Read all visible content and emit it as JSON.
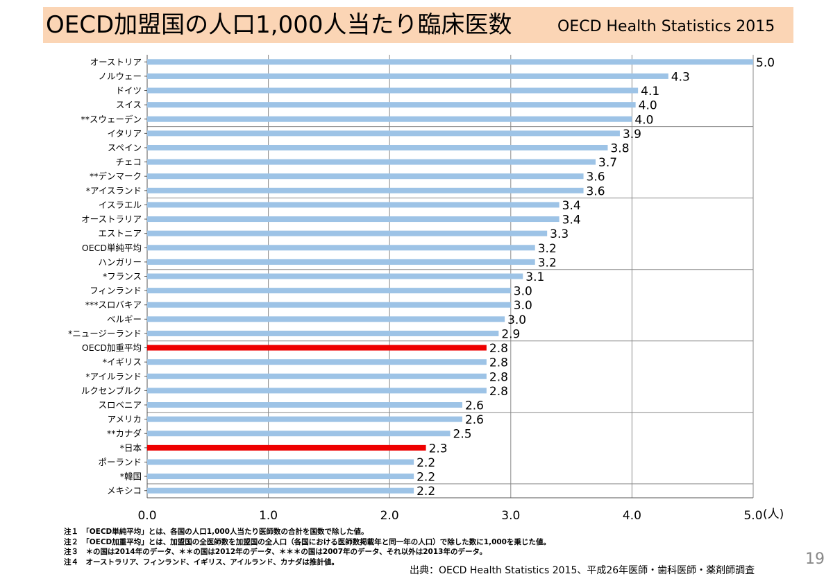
{
  "title": "OECD加盟国の人口1,000人当たり臨床医数",
  "subtitle": "OECD Health Statistics 2015",
  "chart_data": {
    "type": "bar",
    "orientation": "horizontal",
    "categories": [
      "オーストリア",
      "ノルウェー",
      "ドイツ",
      "スイス",
      "**スウェーデン",
      "イタリア",
      "スペイン",
      "チェコ",
      "**デンマーク",
      "*アイスランド",
      "イスラエル",
      "オーストラリア",
      "エストニア",
      "OECD単純平均",
      "ハンガリー",
      "*フランス",
      "フィンランド",
      "***スロバキア",
      "ベルギー",
      "*ニュージーランド",
      "OECD加重平均",
      "*イギリス",
      "*アイルランド",
      "ルクセンブルク",
      "スロベニア",
      "アメリカ",
      "**カナダ",
      "*日本",
      "ポーランド",
      "*韓国",
      "メキシコ"
    ],
    "values": [
      5.0,
      4.3,
      4.05,
      4.03,
      4.0,
      3.9,
      3.8,
      3.7,
      3.6,
      3.6,
      3.4,
      3.4,
      3.3,
      3.2,
      3.2,
      3.1,
      3.0,
      3.0,
      2.95,
      2.9,
      2.8,
      2.8,
      2.8,
      2.8,
      2.6,
      2.6,
      2.5,
      2.3,
      2.2,
      2.2,
      2.2
    ],
    "labels": [
      "5.0",
      "4.3",
      "4.1",
      "4.0",
      "4.0",
      "3.9",
      "3.8",
      "3.7",
      "3.6",
      "3.6",
      "3.4",
      "3.4",
      "3.3",
      "3.2",
      "3.2",
      "3.1",
      "3.0",
      "3.0",
      "3.0",
      "2.9",
      "2.8",
      "2.8",
      "2.8",
      "2.8",
      "2.6",
      "2.6",
      "2.5",
      "2.3",
      "2.2",
      "2.2",
      "2.2"
    ],
    "highlight": [
      "OECD加重平均",
      "*日本"
    ],
    "bar_color": "#9dc3e6",
    "highlight_color": "#ee0000",
    "xlim": [
      0,
      5
    ],
    "xticks": [
      "0.0",
      "1.0",
      "2.0",
      "3.0",
      "4.0",
      "5.0"
    ],
    "xunit": "(人)",
    "grid": "vertical-and-group-lines"
  },
  "notes": [
    {
      "label": "注１",
      "text": "「OECD単純平均」とは、各国の人口1,000人当たり医師数の合計を国数で除した値。"
    },
    {
      "label": "注２",
      "text": "「OECD加重平均」とは、加盟国の全医師数を加盟国の全人口（各国における医師数掲載年と同一年の人口）で除した数に1,000を乗じた値。"
    },
    {
      "label": "注３",
      "text": "＊の国は2014年のデータ、＊＊の国は2012年のデータ、＊＊＊の国は2007年のデータ、それ以外は2013年のデータ。"
    },
    {
      "label": "注４",
      "text": "オーストラリア、フィンランド、イギリス、アイルランド、カナダは推計値。"
    }
  ],
  "source": "出典：OECD Health Statistics 2015、平成26年医師・歯科医師・薬剤師調査",
  "page_number": "19"
}
